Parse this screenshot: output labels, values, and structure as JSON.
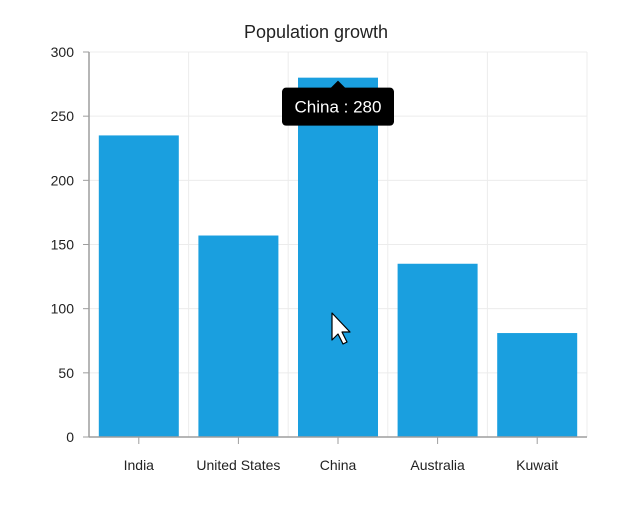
{
  "chart_data": {
    "type": "bar",
    "title": "Population growth",
    "categories": [
      "India",
      "United States",
      "China",
      "Australia",
      "Kuwait"
    ],
    "values": [
      235,
      157,
      280,
      135,
      81
    ],
    "ylim": [
      0,
      300
    ],
    "yticks": [
      0,
      50,
      100,
      150,
      200,
      250,
      300
    ],
    "grid": true,
    "bar_color": "#1a9fdf",
    "tooltip": {
      "category": "China",
      "text": "China : 280"
    }
  }
}
